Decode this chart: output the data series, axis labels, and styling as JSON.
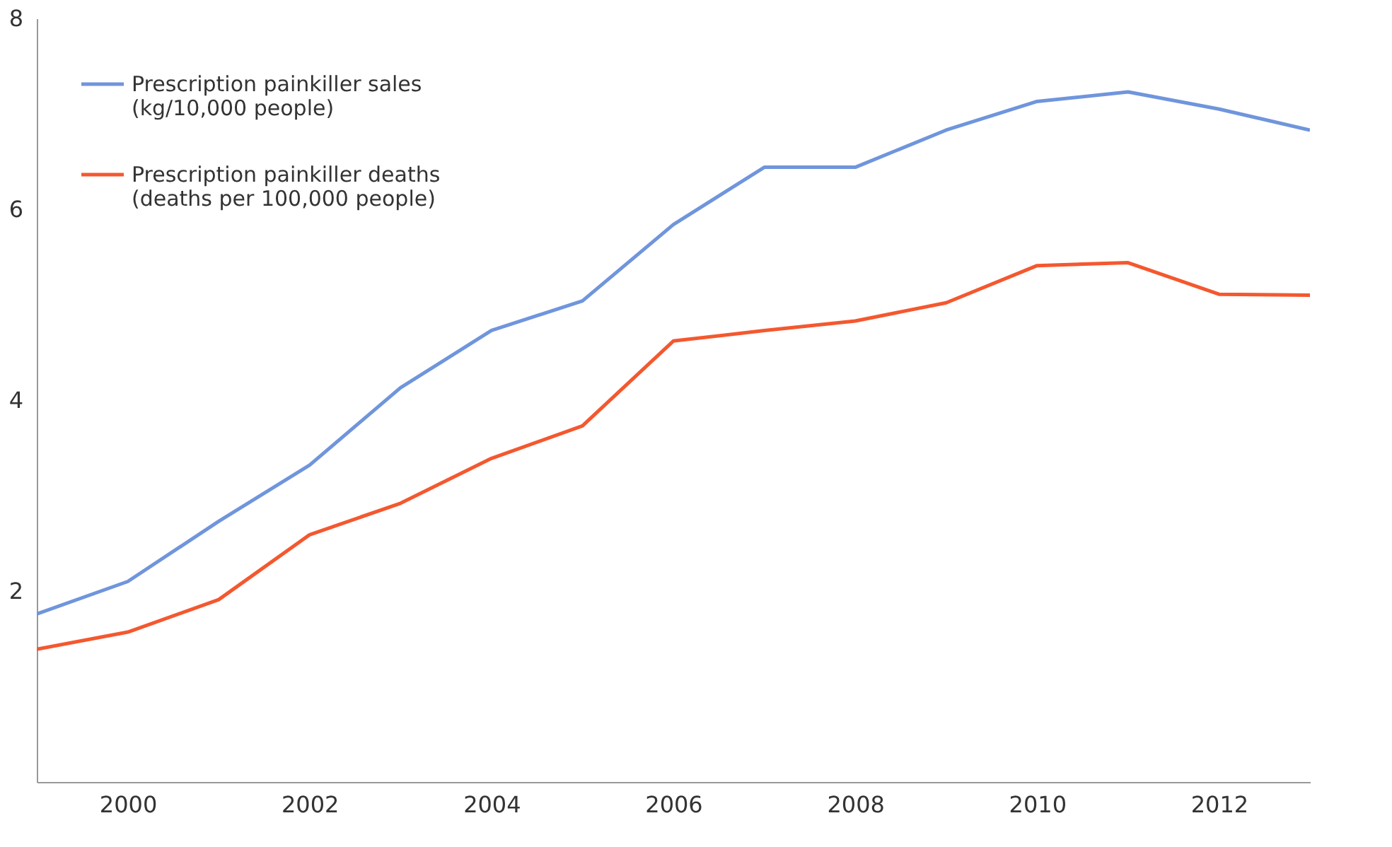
{
  "chart_data": {
    "type": "line",
    "x": [
      1999,
      2000,
      2001,
      2002,
      2003,
      2004,
      2005,
      2006,
      2007,
      2008,
      2009,
      2010,
      2011,
      2012,
      2013
    ],
    "series": [
      {
        "name": "Prescription painkiller sales\n(kg/10,000 people)",
        "color": "#6f95dc",
        "values": [
          1.76,
          2.1,
          2.73,
          3.32,
          4.13,
          4.73,
          5.04,
          5.84,
          6.44,
          6.44,
          6.83,
          7.13,
          7.23,
          7.05,
          6.83
        ]
      },
      {
        "name": "Prescription painkiller deaths\n(deaths per 100,000 people)",
        "color": "#f4582f",
        "values": [
          1.39,
          1.57,
          1.91,
          2.59,
          2.92,
          3.39,
          3.73,
          4.62,
          4.73,
          4.83,
          5.02,
          5.41,
          5.44,
          5.11,
          5.1
        ]
      }
    ],
    "xlim": [
      1999,
      2013
    ],
    "ylim": [
      0,
      8
    ],
    "xticks": [
      2000,
      2002,
      2004,
      2006,
      2008,
      2010,
      2012
    ],
    "yticks": [
      2,
      4,
      6,
      8
    ],
    "grid": false,
    "legend": "top left",
    "marker": "none",
    "line_style": "solid"
  }
}
